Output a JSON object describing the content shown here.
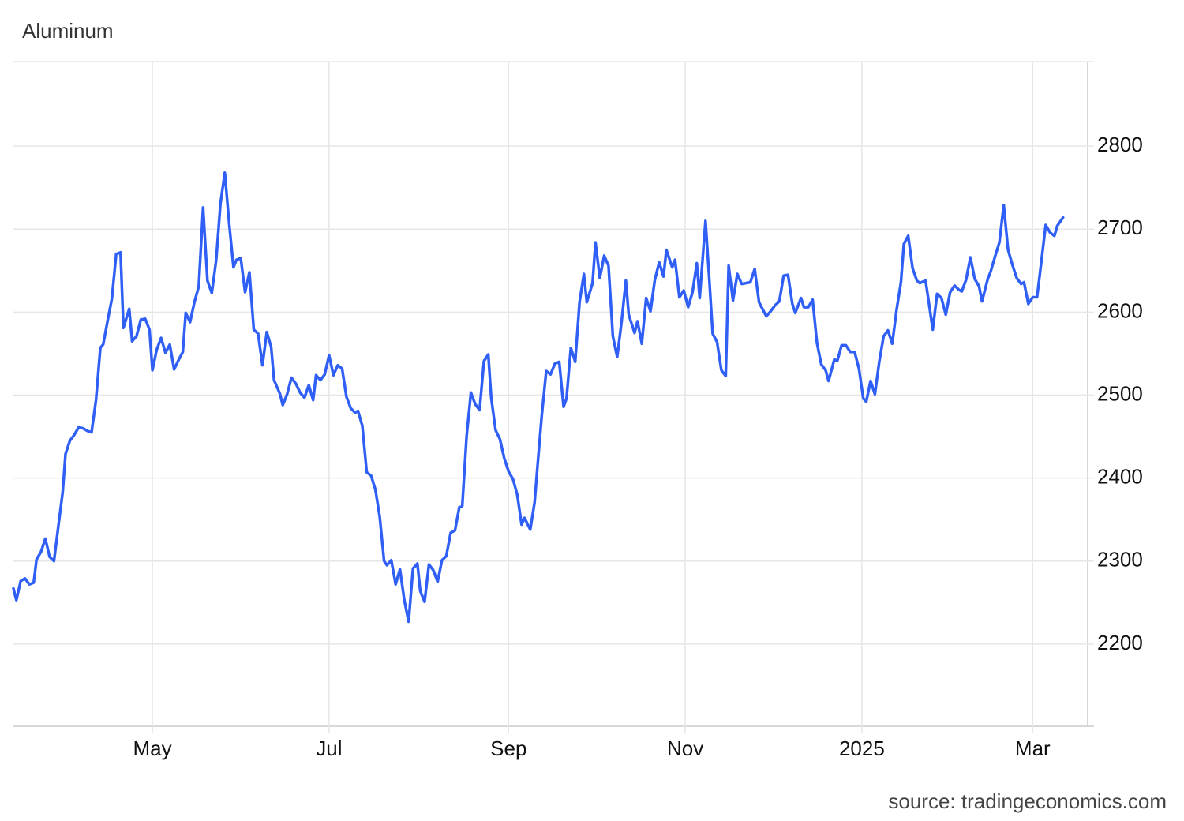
{
  "chart_data": {
    "type": "line",
    "title": "Aluminum",
    "source": "source: tradingeconomics.com",
    "color": "#2f5ff5",
    "grid": true,
    "xlim": [
      0,
      371
    ],
    "xticks": [
      {
        "value": 48,
        "label": "May"
      },
      {
        "value": 109,
        "label": "Jul"
      },
      {
        "value": 171,
        "label": "Sep"
      },
      {
        "value": 232,
        "label": "Nov"
      },
      {
        "value": 293,
        "label": "2025"
      },
      {
        "value": 352,
        "label": "Mar"
      }
    ],
    "ylim": [
      2100,
      2900
    ],
    "yticks": [
      2200,
      2300,
      2400,
      2500,
      2600,
      2700,
      2800
    ],
    "x": [
      0,
      1,
      2.5,
      4,
      5.5,
      7,
      8,
      9.5,
      11,
      12.5,
      14,
      15.5,
      17,
      18,
      19.5,
      21,
      22.5,
      24,
      25.5,
      27,
      28.5,
      30,
      31,
      32.5,
      34,
      35.5,
      37,
      38,
      40,
      41,
      42.5,
      44,
      45.5,
      47,
      48,
      49.5,
      51,
      52.5,
      54,
      55.5,
      57,
      58.5,
      59.5,
      61,
      62.5,
      64,
      65.5,
      67,
      68.5,
      70,
      71.5,
      73,
      74.5,
      76,
      77,
      78.5,
      80,
      81.5,
      83,
      84.5,
      86,
      87.5,
      89,
      90,
      92,
      93,
      94.5,
      96,
      97.5,
      99,
      100.5,
      102,
      103.5,
      104.5,
      106,
      107.5,
      109,
      110.5,
      112,
      113.5,
      115,
      116.5,
      118,
      119,
      120.5,
      122,
      123.5,
      125,
      126.5,
      128,
      129,
      130.5,
      132,
      133.5,
      135,
      136.5,
      138,
      139.5,
      140.5,
      142,
      143.5,
      145,
      146.5,
      148,
      149.5,
      151,
      152.5,
      154,
      155,
      156.5,
      158,
      159.5,
      161,
      162.5,
      164,
      165,
      166.5,
      168,
      169.5,
      171,
      172.5,
      174,
      175.5,
      176.5,
      178.5,
      180,
      181,
      182.5,
      184,
      185.5,
      187,
      188.5,
      190,
      191,
      192.5,
      194,
      195.5,
      197,
      198,
      200,
      201,
      202.5,
      204,
      205.5,
      207,
      208.5,
      210,
      211.5,
      212.5,
      214.5,
      215.5,
      217,
      218.5,
      220,
      221.5,
      223,
      224.5,
      225.5,
      227.5,
      228.5,
      230,
      231.5,
      233,
      234.5,
      236,
      237,
      239,
      240.5,
      241.5,
      243,
      244.5,
      246,
      247,
      248.5,
      250,
      251.5,
      253,
      254.5,
      256,
      257.5,
      258.5,
      260,
      261.5,
      263,
      264.5,
      266,
      267.5,
      269,
      270,
      272,
      273,
      274.5,
      276,
      277.5,
      279,
      280.5,
      281.5,
      283.5,
      284.5,
      286,
      287.5,
      289,
      290.5,
      292,
      293.5,
      294.5,
      296,
      297.5,
      299,
      300.5,
      302,
      303.5,
      305,
      306.5,
      307.5,
      309,
      310.5,
      312,
      313,
      315,
      316,
      317.5,
      319,
      320.5,
      322,
      323.5,
      325,
      326.5,
      327.5,
      329,
      330.5,
      332,
      333.5,
      334.5,
      336.5,
      337.5,
      339,
      340.5,
      342,
      343.5,
      345,
      346.5,
      348,
      349,
      350.5,
      352,
      353.5,
      355,
      356.5,
      358,
      359.5,
      360.5,
      362.5
    ],
    "values": [
      2267,
      2253,
      2276,
      2279,
      2272,
      2274,
      2302,
      2311,
      2327,
      2305,
      2300,
      2342,
      2383,
      2429,
      2445,
      2452,
      2461,
      2460,
      2457,
      2455,
      2494,
      2557,
      2561,
      2589,
      2616,
      2670,
      2672,
      2581,
      2604,
      2565,
      2571,
      2591,
      2592,
      2579,
      2530,
      2555,
      2569,
      2551,
      2561,
      2531,
      2542,
      2552,
      2599,
      2588,
      2612,
      2631,
      2726,
      2638,
      2623,
      2662,
      2731,
      2768,
      2707,
      2654,
      2663,
      2665,
      2624,
      2648,
      2579,
      2574,
      2536,
      2576,
      2558,
      2518,
      2502,
      2488,
      2501,
      2521,
      2514,
      2503,
      2497,
      2512,
      2494,
      2524,
      2518,
      2525,
      2548,
      2524,
      2536,
      2532,
      2498,
      2484,
      2479,
      2481,
      2463,
      2407,
      2403,
      2386,
      2353,
      2300,
      2295,
      2301,
      2272,
      2290,
      2253,
      2227,
      2291,
      2297,
      2264,
      2251,
      2296,
      2289,
      2275,
      2301,
      2306,
      2334,
      2337,
      2365,
      2366,
      2450,
      2503,
      2489,
      2482,
      2541,
      2549,
      2497,
      2458,
      2447,
      2424,
      2408,
      2399,
      2380,
      2344,
      2352,
      2338,
      2371,
      2415,
      2477,
      2529,
      2525,
      2538,
      2540,
      2486,
      2496,
      2557,
      2540,
      2612,
      2646,
      2612,
      2635,
      2684,
      2641,
      2668,
      2656,
      2571,
      2546,
      2588,
      2638,
      2597,
      2575,
      2589,
      2562,
      2617,
      2601,
      2639,
      2660,
      2643,
      2675,
      2654,
      2663,
      2618,
      2626,
      2606,
      2624,
      2659,
      2617,
      2710,
      2629,
      2574,
      2564,
      2530,
      2523,
      2656,
      2614,
      2646,
      2634,
      2635,
      2636,
      2652,
      2612,
      2605,
      2595,
      2601,
      2608,
      2613,
      2644,
      2645,
      2610,
      2599,
      2617,
      2606,
      2606,
      2615,
      2563,
      2537,
      2530,
      2517,
      2543,
      2541,
      2560,
      2560,
      2552,
      2552,
      2532,
      2496,
      2492,
      2517,
      2501,
      2540,
      2571,
      2578,
      2562,
      2603,
      2636,
      2682,
      2692,
      2653,
      2638,
      2635,
      2638,
      2615,
      2579,
      2622,
      2617,
      2597,
      2624,
      2632,
      2627,
      2625,
      2639,
      2666,
      2640,
      2631,
      2613,
      2640,
      2649,
      2667,
      2684,
      2729,
      2675,
      2657,
      2641,
      2634,
      2636,
      2610,
      2618,
      2618,
      2661,
      2705,
      2696,
      2692,
      2704,
      2714
    ]
  }
}
